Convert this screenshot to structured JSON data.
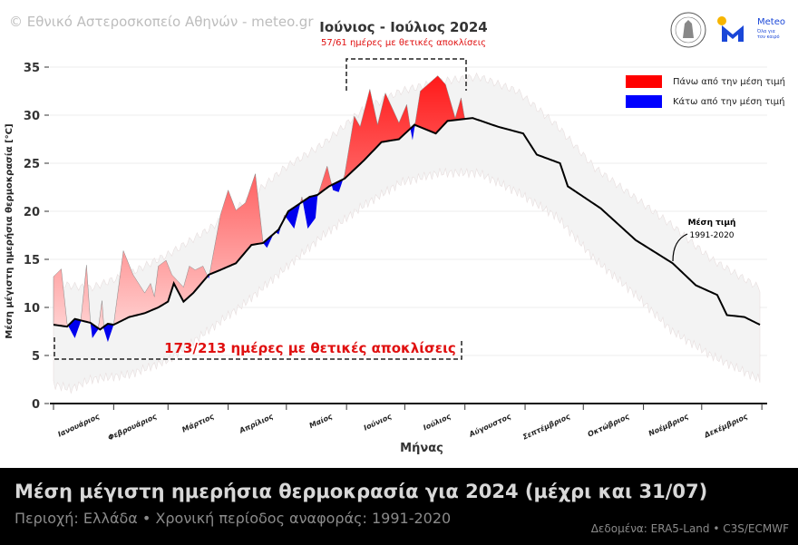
{
  "copyright": "© Εθνικό Αστεροσκοπείο Αθηνών - meteo.gr",
  "logo": {
    "name": "Meteo",
    "tagline": "Όλα για τον καιρό"
  },
  "highlight": {
    "title": "Ιούνιος - Ιούλιος 2024",
    "subtitle": "57/61 ημέρες με θετικές αποκλίσεις"
  },
  "period_annotation": "173/213 ημέρες με θετικές αποκλίσεις",
  "mean_annotation": {
    "line1": "Μέση τιμή",
    "line2": "1991-2020"
  },
  "legend": [
    {
      "label": "Πάνω από την μέση τιμή",
      "color": "#ff0000"
    },
    {
      "label": "Κάτω από την μέση τιμή",
      "color": "#0000ff"
    }
  ],
  "footer": {
    "title": "Μέση μέγιστη ημερήσια θερμοκρασία για 2024 (μέχρι και 31/07)",
    "subtitle": "Περιοχή: Ελλάδα • Χρονική περίοδος αναφοράς: 1991-2020",
    "source": "Δεδομένα: ERA5-Land • C3S/ECMWF"
  },
  "chart_data": {
    "type": "line",
    "xlabel": "Μήνας",
    "ylabel": "Μέση μέγιστη ημερήσια θερμοκρασία [°C]",
    "ylim": [
      0,
      35
    ],
    "yticks": [
      0,
      5,
      10,
      15,
      20,
      25,
      30,
      35
    ],
    "xlim_day_of_year": [
      1,
      365
    ],
    "month_labels": [
      "Ιανουάριος",
      "Φεβρουάριος",
      "Μάρτιος",
      "Απρίλιος",
      "Μαίος",
      "Ιούνιος",
      "Ιούλιος",
      "Αύγουστος",
      "Σεπτέμβριος",
      "Οκτώβριος",
      "Νοέμβριος",
      "Δεκέμβριος"
    ],
    "grid": true,
    "legend_position": "top-right",
    "mean_1991_2020": [
      [
        1,
        8.2
      ],
      [
        8,
        8.0
      ],
      [
        12,
        8.8
      ],
      [
        20,
        8.4
      ],
      [
        25,
        7.7
      ],
      [
        29,
        8.3
      ],
      [
        32,
        8.2
      ],
      [
        40,
        9.0
      ],
      [
        48,
        9.4
      ],
      [
        55,
        10.0
      ],
      [
        60,
        10.6
      ],
      [
        63,
        12.5
      ],
      [
        68,
        10.6
      ],
      [
        73,
        11.5
      ],
      [
        81,
        13.4
      ],
      [
        87,
        13.9
      ],
      [
        95,
        14.6
      ],
      [
        103,
        16.5
      ],
      [
        109,
        16.7
      ],
      [
        117,
        18.1
      ],
      [
        122,
        20.0
      ],
      [
        133,
        21.5
      ],
      [
        137,
        21.7
      ],
      [
        143,
        22.6
      ],
      [
        151,
        23.4
      ],
      [
        161,
        25.3
      ],
      [
        170,
        27.2
      ],
      [
        179,
        27.5
      ],
      [
        187,
        29.0
      ],
      [
        198,
        28.1
      ],
      [
        204,
        29.4
      ],
      [
        217,
        29.7
      ],
      [
        230,
        28.8
      ],
      [
        243,
        28.1
      ],
      [
        250,
        25.9
      ],
      [
        262,
        25.0
      ],
      [
        266,
        22.6
      ],
      [
        283,
        20.3
      ],
      [
        301,
        17.0
      ],
      [
        320,
        14.6
      ],
      [
        332,
        12.3
      ],
      [
        343,
        11.3
      ],
      [
        348,
        9.2
      ],
      [
        357,
        9.0
      ],
      [
        365,
        8.2
      ]
    ],
    "range_upper": [
      [
        1,
        12.5
      ],
      [
        20,
        12.0
      ],
      [
        40,
        13.5
      ],
      [
        60,
        15.5
      ],
      [
        80,
        18.0
      ],
      [
        100,
        21.0
      ],
      [
        120,
        24.5
      ],
      [
        140,
        27.0
      ],
      [
        160,
        30.5
      ],
      [
        180,
        32.5
      ],
      [
        200,
        33.5
      ],
      [
        220,
        34.0
      ],
      [
        240,
        32.5
      ],
      [
        260,
        29.0
      ],
      [
        280,
        24.5
      ],
      [
        300,
        21.5
      ],
      [
        320,
        18.5
      ],
      [
        340,
        15.0
      ],
      [
        365,
        12.0
      ]
    ],
    "range_lower": [
      [
        1,
        2.0
      ],
      [
        10,
        1.5
      ],
      [
        20,
        2.5
      ],
      [
        40,
        3.0
      ],
      [
        60,
        4.5
      ],
      [
        80,
        7.5
      ],
      [
        100,
        10.5
      ],
      [
        120,
        14.0
      ],
      [
        140,
        17.5
      ],
      [
        160,
        20.5
      ],
      [
        180,
        23.0
      ],
      [
        200,
        24.0
      ],
      [
        220,
        24.0
      ],
      [
        240,
        22.0
      ],
      [
        260,
        19.5
      ],
      [
        280,
        15.0
      ],
      [
        300,
        11.5
      ],
      [
        320,
        7.5
      ],
      [
        340,
        5.0
      ],
      [
        365,
        2.5
      ]
    ],
    "series_2024": [
      [
        1,
        13.2
      ],
      [
        5,
        14.0
      ],
      [
        8,
        8.3
      ],
      [
        12,
        6.8
      ],
      [
        15,
        8.5
      ],
      [
        18,
        14.4
      ],
      [
        20,
        8.5
      ],
      [
        21,
        6.8
      ],
      [
        24,
        7.7
      ],
      [
        26,
        10.7
      ],
      [
        27,
        7.7
      ],
      [
        29,
        6.4
      ],
      [
        32,
        8.2
      ],
      [
        37,
        15.9
      ],
      [
        42,
        13.4
      ],
      [
        48,
        11.5
      ],
      [
        51,
        12.5
      ],
      [
        53,
        11.1
      ],
      [
        55,
        14.3
      ],
      [
        59,
        14.9
      ],
      [
        62,
        13.4
      ],
      [
        68,
        12.1
      ],
      [
        71,
        14.3
      ],
      [
        74,
        13.9
      ],
      [
        78,
        14.3
      ],
      [
        81,
        13.0
      ],
      [
        87,
        19.6
      ],
      [
        91,
        22.2
      ],
      [
        95,
        20.1
      ],
      [
        100,
        20.9
      ],
      [
        105,
        23.9
      ],
      [
        109,
        16.7
      ],
      [
        111,
        16.2
      ],
      [
        115,
        17.9
      ],
      [
        117,
        17.6
      ],
      [
        120,
        19.6
      ],
      [
        125,
        18.2
      ],
      [
        129,
        21.5
      ],
      [
        132,
        18.2
      ],
      [
        136,
        19.3
      ],
      [
        137,
        21.5
      ],
      [
        142,
        24.7
      ],
      [
        145,
        22.2
      ],
      [
        148,
        22.0
      ],
      [
        151,
        23.8
      ],
      [
        156,
        29.9
      ],
      [
        159,
        28.8
      ],
      [
        164,
        32.7
      ],
      [
        168,
        29.0
      ],
      [
        172,
        32.3
      ],
      [
        179,
        29.2
      ],
      [
        183,
        31.1
      ],
      [
        185,
        28.5
      ],
      [
        186,
        27.4
      ],
      [
        190,
        32.5
      ],
      [
        199,
        34.1
      ],
      [
        203,
        33.2
      ],
      [
        208,
        29.7
      ],
      [
        211,
        31.8
      ],
      [
        213,
        29.5
      ]
    ]
  }
}
